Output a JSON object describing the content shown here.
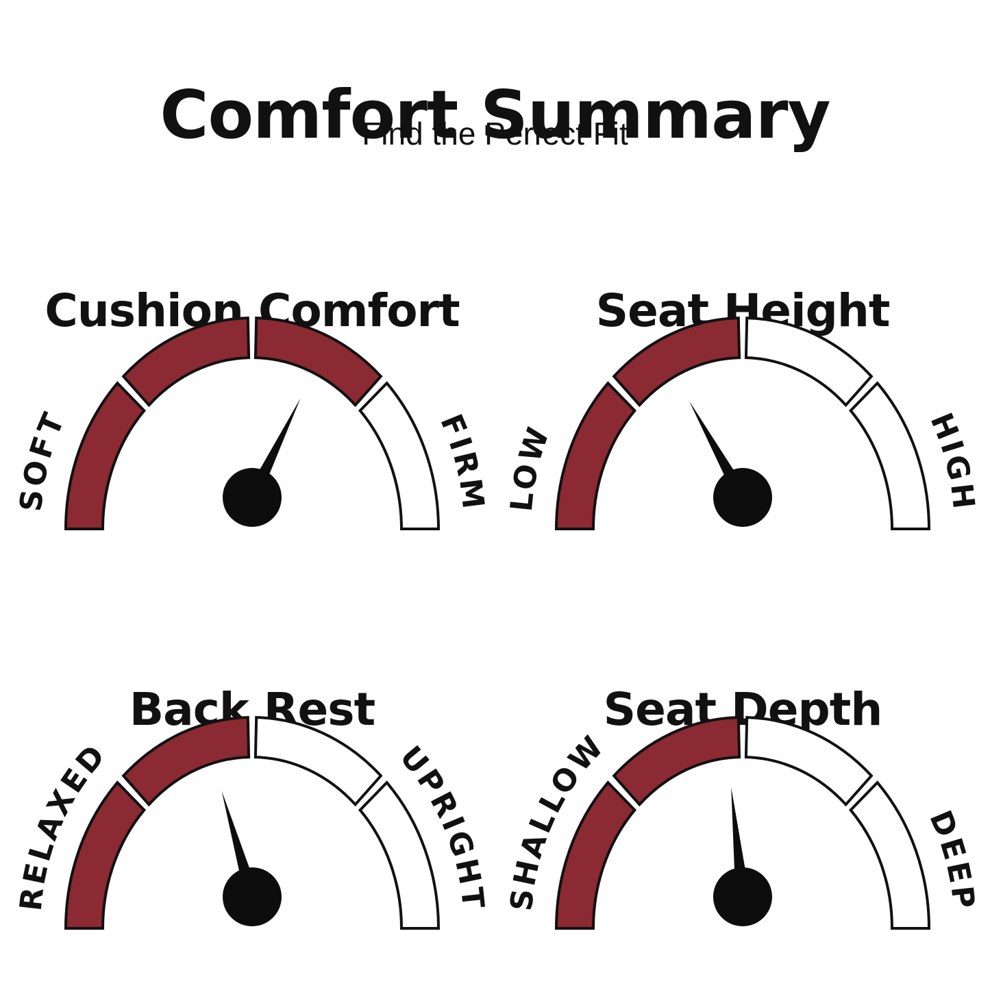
{
  "header": {
    "title": "Comfort Summary",
    "subtitle": "Find the Perfect Fit"
  },
  "colors": {
    "accent": "#8B2A32",
    "ink": "#111111",
    "background": "#FFFFFF"
  },
  "chart_data": [
    {
      "type": "gauge",
      "title": "Cushion Comfort",
      "min_label": "SOFT",
      "max_label": "FIRM",
      "segments_total": 4,
      "segments_filled": 3,
      "needle_angle_polar_deg": 64,
      "scale": "180deg semicircle, 0deg = max (right), 180deg = min (left)"
    },
    {
      "type": "gauge",
      "title": "Seat Height",
      "min_label": "LOW",
      "max_label": "HIGH",
      "segments_total": 4,
      "segments_filled": 2,
      "needle_angle_polar_deg": 119,
      "scale": "180deg semicircle, 0deg = max (right), 180deg = min (left)"
    },
    {
      "type": "gauge",
      "title": "Back Rest",
      "min_label": "RELAXED",
      "max_label": "UPRIGHT",
      "segments_total": 4,
      "segments_filled": 2,
      "needle_angle_polar_deg": 106,
      "scale": "180deg semicircle, 0deg = max (right), 180deg = min (left)"
    },
    {
      "type": "gauge",
      "title": "Seat Depth",
      "min_label": "SHALLOW",
      "max_label": "DEEP",
      "segments_total": 4,
      "segments_filled": 2,
      "needle_angle_polar_deg": 96,
      "scale": "180deg semicircle, 0deg = max (right), 180deg = min (left)"
    }
  ]
}
